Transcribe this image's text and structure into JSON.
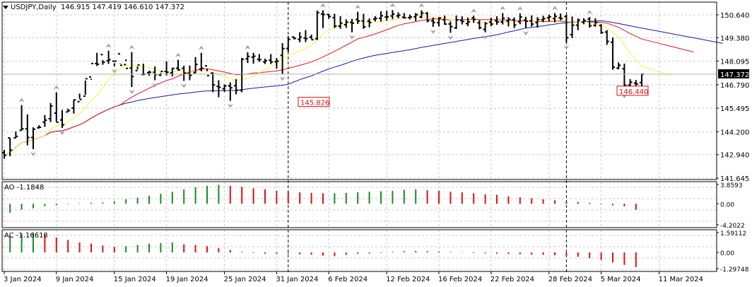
{
  "header": {
    "symbol": "USDJPY,Daily",
    "ohlc": "146.915 147.419 146.610 147.372"
  },
  "colors": {
    "bar": "#000000",
    "grid": "#c8c8c8",
    "sma_fast": "#ffef3c",
    "sma_mid": "#e0141e",
    "sma_slow": "#1a1aa0",
    "up": "#1a8c1a",
    "down": "#e01010",
    "fractal": "#a0a0a0",
    "price_label_bg": "#000000",
    "price_label_fg": "#ffffff"
  },
  "chart_data": {
    "type": "ohlc",
    "price_axis": {
      "ticks": [
        "150.640",
        "149.380",
        "148.095",
        "146.790",
        "145.495",
        "144.200",
        "142.940",
        "141.645"
      ],
      "ylim": [
        141.645,
        150.64
      ]
    },
    "current_price": "147.372",
    "annotations": [
      {
        "text": "145.826",
        "color": "#e01010",
        "bar": 50,
        "value": 145.826
      },
      {
        "text": "146.440",
        "color": "#e01010",
        "bar": 105,
        "value": 146.44
      }
    ],
    "x_labels": [
      {
        "text": "3 Jan 2024",
        "bar": 0
      },
      {
        "text": "9 Jan 2024",
        "bar": 9
      },
      {
        "text": "15 Jan 2024",
        "bar": 19
      },
      {
        "text": "19 Jan 2024",
        "bar": 28
      },
      {
        "text": "25 Jan 2024",
        "bar": 38
      },
      {
        "text": "31 Jan 2024",
        "bar": 47
      },
      {
        "text": "6 Feb 2024",
        "bar": 56
      },
      {
        "text": "12 Feb 2024",
        "bar": 66
      },
      {
        "text": "16 Feb 2024",
        "bar": 75
      },
      {
        "text": "22 Feb 2024",
        "bar": 84
      },
      {
        "text": "28 Feb 2024",
        "bar": 94
      },
      {
        "text": "5 Mar 2024",
        "bar": 103
      },
      {
        "text": "11 Mar 2024",
        "bar": 113
      }
    ],
    "vlines_bar": [
      49,
      97
    ],
    "bars": [
      [
        143.05,
        142.72,
        143.2,
        142.9
      ],
      [
        143.86,
        142.85,
        143.85,
        143.19
      ],
      [
        143.86,
        144.21,
        143.86,
        143.94
      ],
      [
        144.28,
        145.67,
        144.26,
        144.36
      ],
      [
        144.36,
        145.16,
        143.45,
        143.88
      ],
      [
        143.88,
        144.44,
        143.24,
        144.34
      ],
      [
        144.42,
        144.56,
        144.38,
        144.45
      ],
      [
        144.73,
        144.47,
        145.12,
        144.84
      ],
      [
        144.92,
        145.78,
        144.73,
        145.62
      ],
      [
        145.23,
        146.37,
        144.76,
        144.72
      ],
      [
        144.85,
        145.4,
        144.41,
        144.58
      ],
      [
        145.29,
        145.47,
        145.31,
        145.36
      ],
      [
        145.5,
        145.96,
        145.2,
        145.96
      ],
      [
        145.86,
        146.3,
        146.02,
        145.98
      ],
      [
        146.16,
        147.02,
        146.23,
        147.12
      ],
      [
        147.22,
        147.12,
        147.06,
        147.96
      ],
      [
        147.96,
        148.55,
        147.82,
        147.92
      ],
      [
        148.45,
        147.89,
        148.15,
        148.03
      ],
      [
        148.11,
        148.67,
        147.94,
        148.17
      ],
      [
        148.09,
        147.97,
        147.81,
        148.09
      ],
      [
        148.49,
        147.94,
        147.97,
        147.86
      ],
      [
        147.9,
        148.19,
        148.09,
        147.69
      ],
      [
        147.71,
        148.59,
        146.67,
        147.24
      ],
      [
        147.57,
        147.63,
        147.8,
        147.88
      ],
      [
        147.36,
        147.95,
        147.31,
        147.37
      ],
      [
        147.45,
        147.56,
        147.28,
        147.48
      ],
      [
        147.48,
        147.8,
        147.04,
        147.35
      ],
      [
        147.33,
        147.44,
        147.27,
        147.52
      ],
      [
        147.52,
        148.08,
        147.3,
        147.48
      ],
      [
        147.44,
        147.73,
        147.25,
        147.69
      ],
      [
        147.7,
        148.16,
        147.57,
        147.61
      ],
      [
        147.69,
        147.84,
        147.0,
        147.43
      ],
      [
        147.4,
        147.85,
        147.04,
        147.31
      ],
      [
        147.45,
        148.31,
        147.43,
        147.91
      ],
      [
        147.65,
        148.55,
        147.53,
        147.7
      ],
      [
        147.83,
        147.54,
        147.67,
        147.29
      ],
      [
        147.43,
        147.47,
        146.38,
        146.78
      ],
      [
        146.7,
        147.04,
        146.1,
        146.65
      ],
      [
        146.57,
        146.8,
        146.39,
        146.73
      ],
      [
        146.73,
        146.92,
        145.9,
        146.62
      ],
      [
        146.74,
        147.1,
        146.26,
        146.49
      ],
      [
        146.49,
        148.27,
        146.38,
        148.19
      ],
      [
        148.22,
        148.58,
        147.99,
        148.35
      ],
      [
        148.31,
        148.55,
        147.95,
        148.36
      ],
      [
        148.19,
        148.48,
        148.05,
        148.17
      ],
      [
        148.05,
        148.22,
        147.93,
        148.11
      ],
      [
        148.14,
        148.48,
        147.93,
        148.05
      ],
      [
        148.05,
        148.26,
        147.67,
        148.09
      ],
      [
        148.41,
        149.08,
        147.39,
        148.78
      ],
      [
        148.79,
        149.46,
        148.59,
        149.29
      ],
      [
        149.42,
        149.43,
        149.29,
        149.34
      ],
      [
        149.29,
        149.69,
        149.13,
        149.41
      ],
      [
        149.36,
        149.8,
        149.14,
        149.33
      ],
      [
        149.41,
        149.55,
        149.3,
        149.27
      ],
      [
        149.33,
        150.88,
        149.25,
        150.76
      ],
      [
        150.69,
        150.89,
        149.91,
        150.66
      ],
      [
        150.66,
        150.7,
        150.42,
        150.55
      ],
      [
        150.49,
        150.7,
        149.92,
        150.02
      ],
      [
        150.02,
        150.57,
        149.87,
        150.18
      ],
      [
        150.1,
        150.39,
        149.92,
        150.24
      ],
      [
        150.23,
        150.42,
        149.68,
        150.18
      ],
      [
        150.39,
        150.81,
        150.14,
        150.3
      ],
      [
        150.3,
        150.7,
        149.87,
        149.98
      ],
      [
        150.29,
        150.45,
        149.95,
        150.22
      ],
      [
        150.41,
        150.57,
        150.27,
        150.44
      ],
      [
        150.45,
        150.84,
        150.27,
        150.59
      ],
      [
        150.52,
        150.87,
        150.32,
        150.53
      ],
      [
        150.58,
        150.9,
        150.4,
        150.68
      ],
      [
        150.58,
        150.78,
        150.45,
        150.62
      ],
      [
        150.51,
        150.74,
        150.43,
        150.48
      ],
      [
        150.49,
        150.66,
        150.39,
        150.52
      ],
      [
        150.53,
        150.74,
        150.3,
        150.65
      ],
      [
        150.52,
        150.89,
        150.45,
        150.74
      ],
      [
        150.72,
        150.8,
        150.23,
        150.31
      ],
      [
        150.31,
        150.49,
        149.98,
        150.22
      ],
      [
        150.21,
        150.5,
        150.0,
        150.47
      ],
      [
        150.37,
        150.6,
        150.09,
        150.13
      ],
      [
        150.14,
        150.28,
        149.65,
        149.99
      ],
      [
        149.92,
        150.6,
        149.86,
        150.36
      ],
      [
        150.33,
        150.56,
        150.11,
        150.27
      ],
      [
        150.16,
        150.49,
        150.02,
        150.26
      ],
      [
        150.47,
        150.59,
        150.2,
        150.39
      ],
      [
        150.2,
        150.35,
        149.84,
        149.93
      ],
      [
        149.84,
        150.25,
        149.68,
        150.16
      ],
      [
        150.24,
        150.48,
        150.01,
        150.13
      ],
      [
        150.31,
        150.56,
        150.09,
        150.25
      ],
      [
        150.25,
        150.74,
        150.11,
        150.45
      ],
      [
        150.3,
        150.51,
        150.0,
        150.39
      ],
      [
        150.37,
        150.5,
        149.91,
        150.08
      ],
      [
        150.26,
        150.72,
        150.12,
        150.52
      ],
      [
        150.35,
        150.53,
        149.9,
        150.29
      ],
      [
        150.31,
        150.61,
        149.99,
        150.13
      ],
      [
        150.21,
        150.51,
        149.93,
        150.38
      ],
      [
        150.37,
        150.59,
        150.24,
        150.43
      ],
      [
        150.48,
        150.66,
        150.28,
        150.53
      ],
      [
        150.44,
        150.74,
        150.23,
        150.56
      ],
      [
        150.48,
        150.71,
        150.34,
        150.44
      ],
      [
        150.55,
        150.64,
        149.12,
        149.38
      ],
      [
        149.55,
        150.55,
        149.36,
        150.07
      ],
      [
        150.07,
        150.44,
        149.79,
        150.35
      ],
      [
        150.24,
        150.45,
        150.12,
        150.32
      ],
      [
        150.41,
        150.52,
        149.94,
        150.04
      ],
      [
        150.06,
        150.45,
        149.99,
        150.22
      ],
      [
        150.05,
        150.13,
        149.59,
        149.66
      ],
      [
        149.69,
        149.8,
        148.99,
        149.18
      ],
      [
        149.13,
        149.39,
        147.62,
        147.76
      ],
      [
        147.7,
        148.02,
        147.64,
        147.86
      ],
      [
        147.67,
        147.95,
        146.44,
        146.76
      ],
      [
        146.77,
        147.1,
        146.6,
        146.93
      ],
      [
        146.88,
        147.05,
        146.64,
        146.83
      ],
      [
        146.91,
        147.41,
        146.61,
        147.37
      ]
    ],
    "indicators": [
      {
        "name": "AO",
        "value_text": "-1.1848",
        "ticks": [
          "3.8593",
          "0.00",
          "-4.2022"
        ],
        "ylim": [
          -4.2022,
          3.8593
        ],
        "bars": [
          -2.2,
          -2.0,
          -1.8,
          -1.2,
          -0.9,
          -0.5,
          -0.3,
          -0.1,
          0.1,
          0.2,
          0.25,
          0.5,
          0.9,
          1.2,
          1.6,
          2.0,
          2.4,
          2.9,
          3.3,
          3.6,
          3.8,
          3.6,
          3.4,
          3.1,
          2.9,
          2.6,
          2.4,
          2.3,
          2.2,
          2.1,
          2.1,
          2.2,
          2.3,
          2.4,
          2.5,
          2.6,
          2.8,
          2.9,
          2.7,
          2.6,
          2.4,
          2.3,
          2.1,
          1.9,
          1.8,
          1.5,
          1.3,
          1.1,
          0.9,
          0.7,
          0.5,
          0.35,
          0.2,
          -0.1,
          -0.3,
          -0.5,
          -1.2
        ]
      },
      {
        "name": "AC",
        "value_text": "-1.16618",
        "ticks": [
          "1.59112",
          "0.00",
          "-1.29748"
        ],
        "ylim": [
          -1.29748,
          1.59112
        ],
        "bars": [
          1.0,
          1.2,
          1.35,
          1.5,
          1.55,
          1.45,
          1.2,
          1.0,
          0.8,
          0.7,
          0.55,
          0.45,
          0.5,
          0.6,
          0.7,
          0.75,
          0.8,
          0.65,
          0.6,
          0.5,
          0.35,
          0.2,
          0.05,
          -0.05,
          -0.1,
          -0.12,
          -0.1,
          -0.15,
          -0.18,
          -0.25,
          -0.3,
          -0.2,
          -0.12,
          -0.1,
          -0.05,
          0.05,
          0.1,
          0.12,
          0.1,
          0.08,
          0.04,
          -0.02,
          -0.05,
          -0.08,
          -0.1,
          -0.12,
          -0.15,
          -0.18,
          -0.2,
          -0.22,
          -0.28,
          -0.35,
          -0.45,
          -0.6,
          -0.8,
          -1.0,
          -1.17
        ]
      }
    ]
  }
}
